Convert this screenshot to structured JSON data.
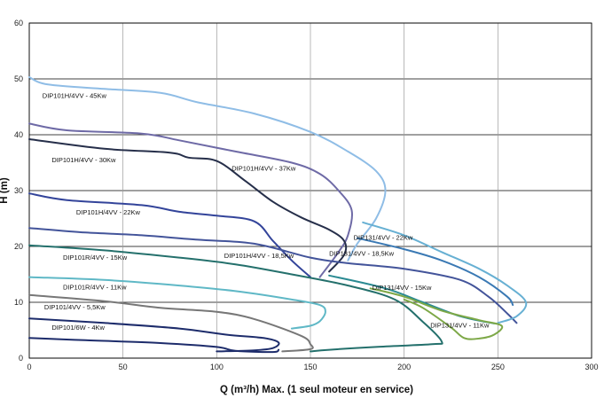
{
  "chart_data": {
    "type": "line",
    "title": "",
    "xlabel": "Q (m³/h) Max. (1 seul moteur en service)",
    "ylabel": "H (m)",
    "xlim": [
      0,
      300
    ],
    "ylim": [
      0,
      60
    ],
    "xticks": [
      "0",
      "50",
      "100",
      "150",
      "200",
      "250",
      "300"
    ],
    "yticks": [
      "0",
      "10",
      "20",
      "30",
      "40",
      "50",
      "60"
    ],
    "grid": true,
    "series": [
      {
        "name": "DIP101H/4VV - 45Kw",
        "color": "#8fbde6",
        "points": [
          [
            0,
            50.3
          ],
          [
            10,
            49
          ],
          [
            40,
            48.2
          ],
          [
            70,
            47.5
          ],
          [
            90,
            45.8
          ],
          [
            120,
            43.8
          ],
          [
            150,
            40.5
          ],
          [
            170,
            37
          ],
          [
            185,
            33.5
          ],
          [
            190,
            30
          ],
          [
            185,
            25
          ],
          [
            175,
            20.5
          ],
          [
            170,
            17.5
          ]
        ],
        "label": {
          "x": 7,
          "y": 46.6
        }
      },
      {
        "name": "DIP101H/4VV - 37Kw",
        "color": "#6e6aa6",
        "points": [
          [
            0,
            42
          ],
          [
            20,
            40.8
          ],
          [
            60,
            40.2
          ],
          [
            80,
            39
          ],
          [
            110,
            37
          ],
          [
            140,
            35
          ],
          [
            155,
            33
          ],
          [
            165,
            30
          ],
          [
            172,
            26.5
          ],
          [
            170,
            22
          ],
          [
            165,
            19
          ],
          [
            155,
            14.5
          ]
        ],
        "label": {
          "x": 108,
          "y": 33.6
        }
      },
      {
        "name": "DIP101H/4VV - 30Kw",
        "color": "#262f4a",
        "points": [
          [
            0,
            39.2
          ],
          [
            40,
            37.5
          ],
          [
            75,
            36.8
          ],
          [
            85,
            35.9
          ],
          [
            100,
            35.3
          ],
          [
            115,
            31.8
          ],
          [
            130,
            28
          ],
          [
            145,
            25.2
          ],
          [
            160,
            23
          ],
          [
            168,
            21
          ],
          [
            168,
            18.5
          ],
          [
            160,
            15.5
          ]
        ],
        "label": {
          "x": 12,
          "y": 35.1
        }
      },
      {
        "name": "DIP101H/4VV - 22Kw",
        "color": "#33449a",
        "points": [
          [
            0,
            29.5
          ],
          [
            20,
            28.3
          ],
          [
            60,
            27.4
          ],
          [
            80,
            26.2
          ],
          [
            100,
            25.5
          ],
          [
            120,
            24.5
          ],
          [
            130,
            21
          ],
          [
            140,
            17.5
          ],
          [
            150,
            14.5
          ]
        ],
        "label": {
          "x": 25,
          "y": 25.7
        }
      },
      {
        "name": "DIP101H/4VV - 18,5Kw",
        "color": "#43549a",
        "points": [
          [
            0,
            23.3
          ],
          [
            30,
            22.5
          ],
          [
            60,
            22
          ],
          [
            90,
            21.2
          ],
          [
            120,
            20.5
          ],
          [
            150,
            18
          ],
          [
            170,
            17
          ],
          [
            200,
            16
          ],
          [
            230,
            14
          ],
          [
            245,
            11
          ],
          [
            255,
            8
          ],
          [
            260,
            6.3
          ]
        ],
        "label": {
          "x": 104,
          "y": 17.9
        }
      },
      {
        "name": "DIP101R/4VV - 15Kw",
        "color": "#24706c",
        "points": [
          [
            0,
            20.2
          ],
          [
            40,
            19.3
          ],
          [
            80,
            18
          ],
          [
            110,
            16.8
          ],
          [
            140,
            15
          ],
          [
            170,
            13
          ],
          [
            195,
            10.5
          ],
          [
            210,
            6.5
          ],
          [
            220,
            3
          ],
          [
            215,
            2.5
          ],
          [
            185,
            2
          ],
          [
            160,
            1.5
          ],
          [
            150,
            1.2
          ]
        ],
        "label": {
          "x": 18,
          "y": 17.6
        }
      },
      {
        "name": "DIP101R/4VV - 11Kw",
        "color": "#5fb8c6",
        "points": [
          [
            0,
            14.5
          ],
          [
            40,
            14
          ],
          [
            80,
            13
          ],
          [
            110,
            12
          ],
          [
            140,
            10.5
          ],
          [
            155,
            9.5
          ],
          [
            158,
            8.3
          ],
          [
            155,
            6.6
          ],
          [
            150,
            5.8
          ],
          [
            140,
            5.3
          ]
        ],
        "label": {
          "x": 18,
          "y": 12.3
        }
      },
      {
        "name": "DIP101/4VV - 5,5Kw",
        "color": "#777777",
        "points": [
          [
            0,
            11.3
          ],
          [
            40,
            10.2
          ],
          [
            70,
            9
          ],
          [
            100,
            8.3
          ],
          [
            120,
            7
          ],
          [
            145,
            4
          ],
          [
            150,
            2.5
          ],
          [
            150,
            1.6
          ],
          [
            135,
            1.2
          ]
        ],
        "label": {
          "x": 8,
          "y": 8.7
        }
      },
      {
        "name": "DIP101/6W - 4Kw",
        "color": "#1d2c6b",
        "points": [
          [
            0,
            7.1
          ],
          [
            40,
            6.3
          ],
          [
            80,
            5.3
          ],
          [
            105,
            4.2
          ],
          [
            125,
            3.6
          ],
          [
            133,
            2.8
          ],
          [
            130,
            1.8
          ],
          [
            120,
            1.4
          ],
          [
            100,
            1.2
          ]
        ],
        "label": {
          "x": 12,
          "y": 5.1
        }
      },
      {
        "name": "DIP101/6W - 4Kw (lower)",
        "color": "#1d2c6b",
        "points": [
          [
            0,
            3.6
          ],
          [
            30,
            3.2
          ],
          [
            70,
            2.7
          ],
          [
            100,
            2
          ],
          [
            110,
            1.3
          ],
          [
            130,
            1.1
          ],
          [
            133,
            1.5
          ]
        ],
        "label": null
      },
      {
        "name": "DIP131/4VV - 22Kw",
        "color": "#67b0d3",
        "points": [
          [
            178,
            24.3
          ],
          [
            200,
            22
          ],
          [
            220,
            19
          ],
          [
            240,
            16
          ],
          [
            255,
            13
          ],
          [
            265,
            10
          ],
          [
            260,
            7.5
          ],
          [
            250,
            6.3
          ]
        ],
        "label": {
          "x": 173,
          "y": 21.2
        }
      },
      {
        "name": "DIP131/4VV - 18,5Kw",
        "color": "#3a79b4",
        "points": [
          [
            175,
            21.5
          ],
          [
            200,
            19.5
          ],
          [
            220,
            17.5
          ],
          [
            240,
            14.5
          ],
          [
            255,
            11
          ],
          [
            258,
            9.5
          ]
        ],
        "label": {
          "x": 160,
          "y": 18.3
        }
      },
      {
        "name": "DIP131/4VV - 15Kw",
        "color": "#2a8a92",
        "points": [
          [
            160,
            14.8
          ],
          [
            190,
            12.5
          ],
          [
            210,
            10
          ],
          [
            230,
            7.5
          ],
          [
            248,
            6.2
          ]
        ],
        "label": {
          "x": 183,
          "y": 12.2
        }
      },
      {
        "name": "DIP131/4VV - 11Kw",
        "color": "#7da847",
        "points": [
          [
            182,
            12.5
          ],
          [
            200,
            11
          ],
          [
            220,
            8.5
          ],
          [
            240,
            6.8
          ],
          [
            252,
            5.8
          ],
          [
            248,
            4.2
          ],
          [
            240,
            3.5
          ],
          [
            232,
            3.6
          ],
          [
            225,
            5.5
          ],
          [
            210,
            9
          ],
          [
            200,
            10.5
          ]
        ],
        "label": {
          "x": 214,
          "y": 5.5
        }
      }
    ]
  }
}
